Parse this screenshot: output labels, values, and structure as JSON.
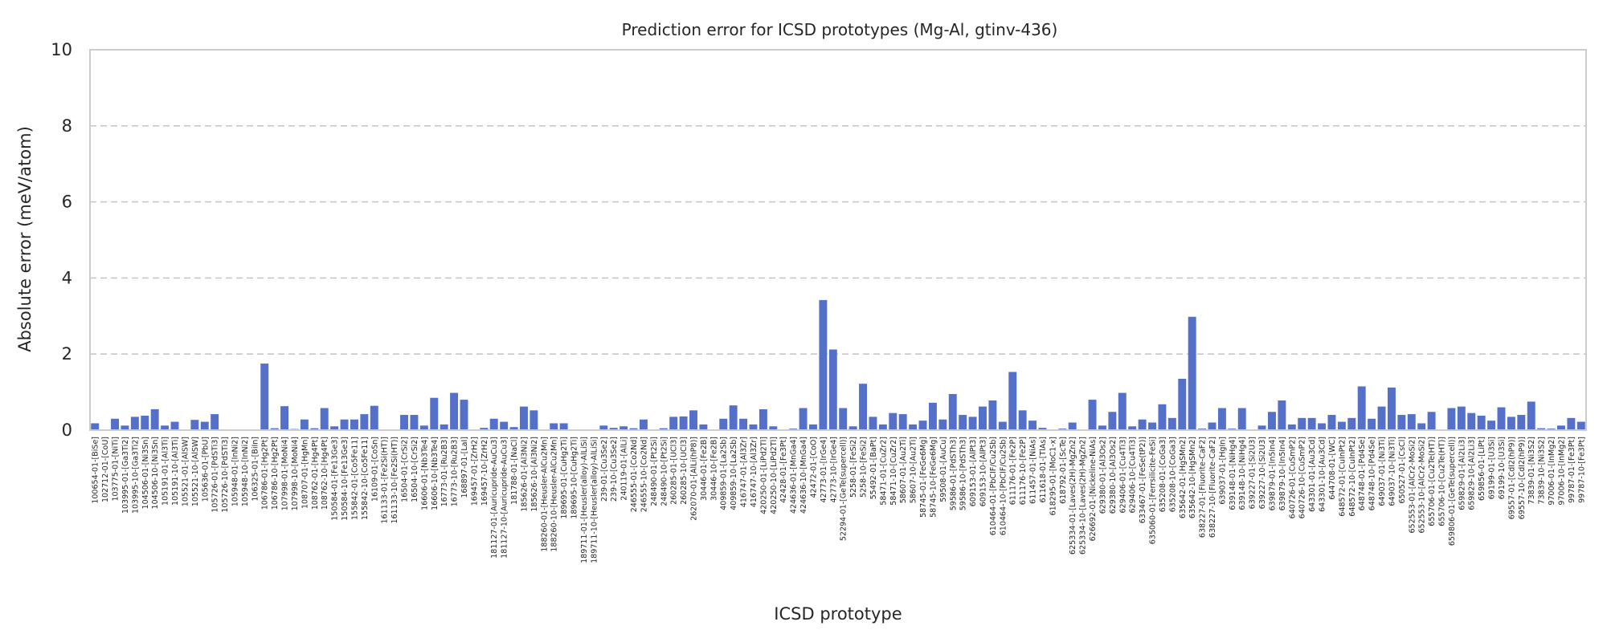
{
  "chart_data": {
    "type": "bar",
    "title": "Prediction error for ICSD prototypes (Mg-Al, gtinv-436)",
    "xlabel": "ICSD prototype",
    "ylabel": "Absolute error (meV/atom)",
    "ylim": [
      0,
      10
    ],
    "yticks": [
      "0",
      "2",
      "4",
      "6",
      "8",
      "10"
    ],
    "grid": "horizontal dashed",
    "colors": {
      "bar": "#5470c8",
      "grid": "#c8c8c8",
      "frame": "#cccccc",
      "text": "#262626"
    },
    "categories": [
      "100654-01-[BiSe]",
      "102712-01-[CoU]",
      "103775-01-[NiTi]",
      "103995-01-[Ga3Ti2]",
      "103995-10-[Ga3Ti2]",
      "104506-01-[Ni3Sn]",
      "104506-10-[Ni3Sn]",
      "105191-01-[Al3Ti]",
      "105191-10-[Al3Ti]",
      "105521-01-[AlSW]",
      "105521-10-[AlSW]",
      "105636-01-[PbU]",
      "105726-01-[PdSTi3]",
      "105726-10-[PdSTi3]",
      "105948-01-[InNi2]",
      "105948-10-[InNi2]",
      "106325-01-[BiIn]",
      "106786-01-[Hg2Pt]",
      "106786-10-[Hg2Pt]",
      "107998-01-[MoNi4]",
      "107998-10-[MoNi4]",
      "108707-01-[HgMn]",
      "108762-01-[Hg4Pt]",
      "108762-10-[Hg4Pt]",
      "150584-01-[Fe13Ge3]",
      "150584-10-[Fe13Ge3]",
      "155842-01-[Co5Fe11]",
      "155842-10-[Co5Fe11]",
      "16109-01-[CoSn]",
      "161133-01-[Fe2Si(HT)]",
      "161133-10-[Fe2Si(HT)]",
      "16504-01-[CrSi2]",
      "16504-10-[CrSi2]",
      "16606-01-[Nb3Te4]",
      "16606-10-[Nb3Te4]",
      "16773-01-[Ru2B3]",
      "16773-10-[Ru2B3]",
      "168897-01-[LaI]",
      "169457-01-[ZrH2]",
      "169457-10-[ZrH2]",
      "181127-01-[Auricupride-AuCu3]",
      "181127-10-[Auricupride-AuCu3]",
      "181788-01-[NaCl]",
      "185626-01-[Al3Ni2]",
      "185626-10-[Al3Ni2]",
      "188260-01-[Heusler-AlCu2Mn]",
      "188260-10-[Heusler-AlCu2Mn]",
      "189695-01-[CuHg2Ti]",
      "189695-10-[CuHg2Ti]",
      "189711-01-[Heusler(alloy)-AlLiSi]",
      "189711-10-[Heusler(alloy)-AlLiSi]",
      "239-01-[Cu3Se2]",
      "239-10-[Cu3Se2]",
      "240119-01-[AlLi]",
      "246555-01-[Co2Nd]",
      "246555-10-[Co2Nd]",
      "248490-01-[Pt2Si]",
      "248490-10-[Pt2Si]",
      "260285-01-[UCl3]",
      "260285-10-[UCl3]",
      "262070-01-[AlLi(hP8)]",
      "30446-01-[Fe2B]",
      "30446-10-[Fe2B]",
      "409859-01-[La2Sb]",
      "409859-10-[La2Sb]",
      "416747-01-[Al3Zr]",
      "416747-10-[Al3Zr]",
      "420250-01-[LiPd2Tl]",
      "420250-10-[LiPd2Tl]",
      "42428-01-[Fe3Pt]",
      "424636-01-[MnGa4]",
      "424636-10-[MnGa4]",
      "42472-01-[CoO]",
      "42773-01-[IrGe4]",
      "42773-10-[IrGe4]",
      "52294-01-[GeTe(supercell)]",
      "5258-01-[FeSi2]",
      "5258-10-[FeSi2]",
      "55492-01-[BaPt]",
      "58471-01-[CuZr2]",
      "58471-10-[CuZr2]",
      "58607-01-[Au2Ti]",
      "58607-10-[Au2Ti]",
      "58745-01-[FeGe6Mg]",
      "58745-10-[FeGe6Mg]",
      "59508-01-[AuCu]",
      "59586-01-[PdSTh3]",
      "59586-10-[PdSTh3]",
      "609153-01-[AlPt3]",
      "609153-10-[AlPt3]",
      "610464-01-[PbCIF/Cu2Sb]",
      "610464-10-[PbCIF/Cu2Sb]",
      "611176-01-[Fe2P]",
      "611176-10-[Fe2P]",
      "611457-01-[NiAs]",
      "611618-01-[TlAs]",
      "618295-01-[MoC1-x]",
      "618792-01-[ScTe]",
      "625334-01-[Laves(2H)-MgZn2]",
      "625334-10-[Laves(2H)-MgZn2]",
      "626692-01-[Nickeline-NiAs]",
      "629380-01-[Al3Os2]",
      "629380-10-[Al3Os2]",
      "629406-01-[Cu4Ti3]",
      "629406-10-[Cu4Ti3]",
      "633467-01-[FeSe(tP2)]",
      "635060-01-[Ferrsilicite-FeSi]",
      "635208-01-[CoGa3]",
      "635208-10-[CoGa3]",
      "635642-01-[HgSMn2]",
      "635642-10-[HgSMn2]",
      "638227-01-[Fluorite-CaF2]",
      "638227-10-[Fluorite-CaF2]",
      "639037-01-[HgIn]",
      "639148-01-[NiHg4]",
      "639148-10-[NiHg4]",
      "639227-01-[Si2U3]",
      "639227-10-[Si2U3]",
      "639879-01-[In5In4]",
      "639879-10-[In5In4]",
      "640726-01-[CuSmP2]",
      "640726-10-[CuSmP2]",
      "643301-01-[Au3Cd]",
      "643301-10-[Au3Cd]",
      "644708-01-[WC]",
      "648572-01-[CuInPt2]",
      "648572-10-[CuInPt2]",
      "648748-01-[Pd4Se]",
      "648748-10-[Pd4Se]",
      "649037-01-[Ni3Ti]",
      "649037-10-[Ni3Ti]",
      "650527-01-[CsCl]",
      "652553-01-[AlCr2-MoSi2]",
      "652553-10-[AlCr2-MoSi2]",
      "655706-01-[Cu2Te(HT)]",
      "655706-10-[Cu2Te(HT)]",
      "659806-01-[GeTe(supercell)]",
      "659829-01-[Al2Li3]",
      "659829-10-[Al2Li3]",
      "659856-01-[LiPt]",
      "69199-01-[U3Si]",
      "69199-10-[U3Si]",
      "69557-01-[CdI2(hP9)]",
      "69557-10-[CdI2(hP9)]",
      "73839-01-[Ni3S2]",
      "73839-10-[Ni3S2]",
      "97006-01-[InMg2]",
      "97006-10-[InMg2]",
      "99787-01-[Fe3Pt]",
      "99787-10-[Fe3Pt]"
    ],
    "values": [
      0.18,
      0.02,
      0.3,
      0.12,
      0.35,
      0.38,
      0.55,
      0.12,
      0.22,
      0.02,
      0.27,
      0.22,
      0.42,
      0.02,
      0.02,
      0.02,
      0.02,
      1.75,
      0.05,
      0.63,
      0.03,
      0.28,
      0.05,
      0.58,
      0.1,
      0.28,
      0.28,
      0.42,
      0.64,
      0.02,
      0.02,
      0.4,
      0.4,
      0.12,
      0.85,
      0.15,
      0.98,
      0.8,
      0.02,
      0.06,
      0.3,
      0.22,
      0.08,
      0.62,
      0.52,
      0.02,
      0.18,
      0.18,
      0.02,
      0.02,
      0.02,
      0.12,
      0.06,
      0.1,
      0.05,
      0.28,
      0.02,
      0.05,
      0.35,
      0.36,
      0.52,
      0.15,
      0.02,
      0.3,
      0.65,
      0.3,
      0.15,
      0.55,
      0.1,
      0.02,
      0.04,
      0.58,
      0.15,
      3.42,
      2.12,
      0.58,
      0.1,
      1.22,
      0.35,
      0.15,
      0.45,
      0.42,
      0.15,
      0.25,
      0.72,
      0.28,
      0.95,
      0.4,
      0.35,
      0.62,
      0.78,
      0.22,
      1.53,
      0.52,
      0.25,
      0.06,
      0.02,
      0.04,
      0.2,
      0.02,
      0.8,
      0.12,
      0.48,
      0.98,
      0.1,
      0.28,
      0.2,
      0.68,
      0.32,
      1.35,
      2.98,
      0.04,
      0.2,
      0.58,
      0.04,
      0.58,
      0.02,
      0.12,
      0.48,
      0.78,
      0.15,
      0.32,
      0.32,
      0.18,
      0.4,
      0.22,
      0.32,
      1.15,
      0.3,
      0.62,
      1.12,
      0.4,
      0.42,
      0.18,
      0.48,
      0.02,
      0.58,
      0.62,
      0.45,
      0.38,
      0.25,
      0.6,
      0.35,
      0.4,
      0.75,
      0.05,
      0.04,
      0.12,
      0.32,
      0.22
    ]
  }
}
